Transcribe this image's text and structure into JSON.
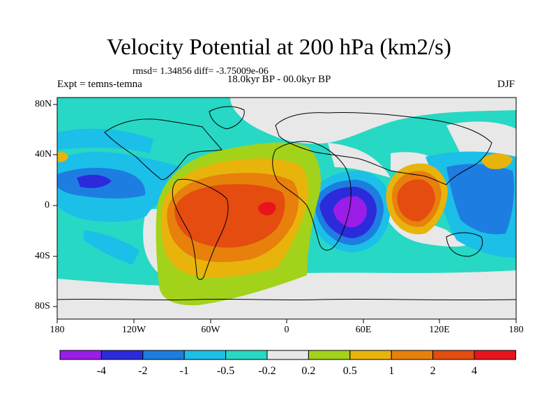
{
  "title": "Velocity Potential at 200 hPa (km2/s)",
  "stats_line": "rmsd= 1.34856 diff= -3.75009e-06",
  "period_line": "18.0kyr BP - 00.0kyr BP",
  "experiment_label": "Expt = temns-temna",
  "season_label": "DJF",
  "map_axes": {
    "x_ticks": [
      "180",
      "120W",
      "60W",
      "0",
      "60E",
      "120E",
      "180"
    ],
    "y_ticks": [
      "80N",
      "40N",
      "0",
      "40S",
      "80S"
    ]
  },
  "colorbar": {
    "colors": [
      "#9a1de8",
      "#2b2bdb",
      "#1e7de0",
      "#1cbfe8",
      "#27d8c4",
      "#e8e8e8",
      "#a3d21a",
      "#e8b40c",
      "#e8800c",
      "#e44c10",
      "#e8141c"
    ],
    "labels": [
      "-4",
      "-2",
      "-1",
      "-0.5",
      "-0.2",
      "0.2",
      "0.5",
      "1",
      "2",
      "4"
    ]
  }
}
